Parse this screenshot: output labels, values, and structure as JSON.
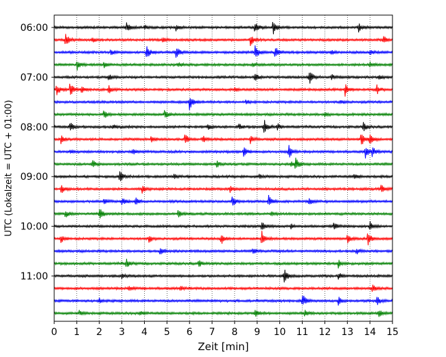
{
  "chart_data": {
    "type": "line",
    "xlabel": "Zeit  [min]",
    "ylabel": "UTC (Lokalzeit = UTC + 01:00)",
    "xlim": [
      0,
      15
    ],
    "x_ticks": [
      0,
      1,
      2,
      3,
      4,
      5,
      6,
      7,
      8,
      9,
      10,
      11,
      12,
      13,
      14,
      15
    ],
    "y_ticks": [
      "06:00",
      "07:00",
      "08:00",
      "09:00",
      "10:00",
      "11:00"
    ],
    "grid": "vertical dotted lines at every minute",
    "trace_interval_minutes": 15,
    "first_trace": "06:00",
    "trace_colors": [
      "#000000",
      "#ff0000",
      "#0000ff",
      "#008000"
    ],
    "traces": [
      {
        "start": "06:00",
        "color": "#000000",
        "events": [
          [
            3.2,
            0.6
          ],
          [
            4.0,
            0.3
          ],
          [
            5.4,
            0.5
          ],
          [
            8.9,
            0.7
          ],
          [
            9.7,
            1.0
          ],
          [
            13.5,
            0.5
          ]
        ]
      },
      {
        "start": "06:15",
        "color": "#ff0000",
        "events": [
          [
            0.5,
            0.9
          ],
          [
            1.7,
            0.3
          ],
          [
            4.8,
            0.4
          ],
          [
            8.7,
            0.7
          ],
          [
            14.6,
            0.5
          ]
        ]
      },
      {
        "start": "06:30",
        "color": "#0000ff",
        "events": [
          [
            2.5,
            0.3
          ],
          [
            4.1,
            0.9
          ],
          [
            5.4,
            0.8
          ],
          [
            8.9,
            1.0
          ],
          [
            9.8,
            0.9
          ],
          [
            12.3,
            0.4
          ],
          [
            14.0,
            0.4
          ]
        ]
      },
      {
        "start": "06:45",
        "color": "#008000",
        "events": [
          [
            1.0,
            0.7
          ],
          [
            2.2,
            0.4
          ],
          [
            5.5,
            0.3
          ],
          [
            8.8,
            0.3
          ],
          [
            14.0,
            0.3
          ]
        ]
      },
      {
        "start": "07:00",
        "color": "#000000",
        "events": [
          [
            2.4,
            0.4
          ],
          [
            8.9,
            0.6
          ],
          [
            11.3,
            1.0
          ],
          [
            12.3,
            0.3
          ],
          [
            14.4,
            0.3
          ]
        ]
      },
      {
        "start": "07:15",
        "color": "#ff0000",
        "events": [
          [
            0.1,
            0.8
          ],
          [
            0.7,
            1.0
          ],
          [
            1.2,
            0.5
          ],
          [
            2.4,
            0.6
          ],
          [
            8.0,
            0.3
          ],
          [
            12.9,
            0.8
          ],
          [
            14.3,
            0.6
          ]
        ]
      },
      {
        "start": "07:30",
        "color": "#0000ff",
        "events": [
          [
            6.0,
            1.0
          ],
          [
            8.5,
            0.3
          ],
          [
            12.7,
            0.3
          ]
        ]
      },
      {
        "start": "07:45",
        "color": "#008000",
        "events": [
          [
            2.2,
            0.6
          ],
          [
            4.9,
            0.6
          ],
          [
            12.0,
            0.3
          ]
        ]
      },
      {
        "start": "08:00",
        "color": "#000000",
        "events": [
          [
            0.7,
            0.6
          ],
          [
            2.6,
            0.3
          ],
          [
            6.8,
            0.4
          ],
          [
            8.2,
            0.4
          ],
          [
            9.3,
            1.0
          ],
          [
            9.9,
            0.4
          ],
          [
            13.7,
            0.6
          ]
        ]
      },
      {
        "start": "08:15",
        "color": "#ff0000",
        "events": [
          [
            0.3,
            0.5
          ],
          [
            4.3,
            0.4
          ],
          [
            5.8,
            0.7
          ],
          [
            6.6,
            0.5
          ],
          [
            8.7,
            0.5
          ],
          [
            13.6,
            1.0
          ],
          [
            14.0,
            0.8
          ]
        ]
      },
      {
        "start": "08:30",
        "color": "#0000ff",
        "events": [
          [
            0.7,
            0.3
          ],
          [
            3.5,
            0.3
          ],
          [
            8.4,
            0.7
          ],
          [
            10.4,
            0.9
          ],
          [
            13.8,
            0.8
          ],
          [
            14.1,
            0.7
          ]
        ]
      },
      {
        "start": "08:45",
        "color": "#008000",
        "events": [
          [
            1.7,
            0.5
          ],
          [
            7.2,
            0.5
          ],
          [
            10.5,
            0.4
          ],
          [
            10.7,
            0.8
          ]
        ]
      },
      {
        "start": "09:00",
        "color": "#000000",
        "events": [
          [
            2.9,
            0.8
          ],
          [
            5.3,
            0.3
          ],
          [
            9.1,
            0.3
          ],
          [
            13.3,
            0.4
          ]
        ]
      },
      {
        "start": "09:15",
        "color": "#ff0000",
        "events": [
          [
            0.3,
            0.6
          ],
          [
            3.9,
            0.5
          ],
          [
            7.8,
            0.4
          ],
          [
            14.5,
            0.6
          ]
        ]
      },
      {
        "start": "09:30",
        "color": "#0000ff",
        "events": [
          [
            2.2,
            0.4
          ],
          [
            3.0,
            0.6
          ],
          [
            3.6,
            0.5
          ],
          [
            7.9,
            0.8
          ],
          [
            9.5,
            1.0
          ],
          [
            11.3,
            0.4
          ]
        ]
      },
      {
        "start": "09:45",
        "color": "#008000",
        "events": [
          [
            0.5,
            0.5
          ],
          [
            2.0,
            0.8
          ],
          [
            5.5,
            0.5
          ],
          [
            9.6,
            0.3
          ]
        ]
      },
      {
        "start": "10:00",
        "color": "#000000",
        "events": [
          [
            9.2,
            0.6
          ],
          [
            10.5,
            0.3
          ],
          [
            12.4,
            0.5
          ],
          [
            14.0,
            0.6
          ]
        ]
      },
      {
        "start": "10:15",
        "color": "#ff0000",
        "events": [
          [
            0.3,
            0.5
          ],
          [
            4.2,
            0.5
          ],
          [
            7.4,
            0.7
          ],
          [
            9.2,
            1.0
          ],
          [
            13.0,
            0.5
          ],
          [
            13.9,
            1.0
          ]
        ]
      },
      {
        "start": "10:30",
        "color": "#0000ff",
        "events": [
          [
            4.7,
            0.5
          ],
          [
            8.8,
            0.4
          ],
          [
            13.4,
            0.4
          ]
        ]
      },
      {
        "start": "10:45",
        "color": "#008000",
        "events": [
          [
            3.2,
            0.6
          ],
          [
            6.4,
            0.5
          ],
          [
            12.6,
            0.5
          ]
        ]
      },
      {
        "start": "11:00",
        "color": "#000000",
        "events": [
          [
            3.0,
            0.3
          ],
          [
            10.2,
            1.0
          ],
          [
            12.6,
            0.5
          ]
        ]
      },
      {
        "start": "11:15",
        "color": "#ff0000",
        "events": [
          [
            3.3,
            0.3
          ],
          [
            5.6,
            0.3
          ],
          [
            14.1,
            0.6
          ]
        ]
      },
      {
        "start": "11:30",
        "color": "#0000ff",
        "events": [
          [
            2.0,
            0.3
          ],
          [
            11.0,
            1.0
          ],
          [
            12.6,
            0.5
          ],
          [
            14.3,
            0.6
          ]
        ]
      },
      {
        "start": "11:45",
        "color": "#008000",
        "events": [
          [
            1.1,
            0.3
          ],
          [
            3.8,
            0.3
          ],
          [
            8.9,
            0.6
          ],
          [
            11.1,
            0.4
          ],
          [
            14.4,
            0.5
          ]
        ]
      }
    ]
  }
}
